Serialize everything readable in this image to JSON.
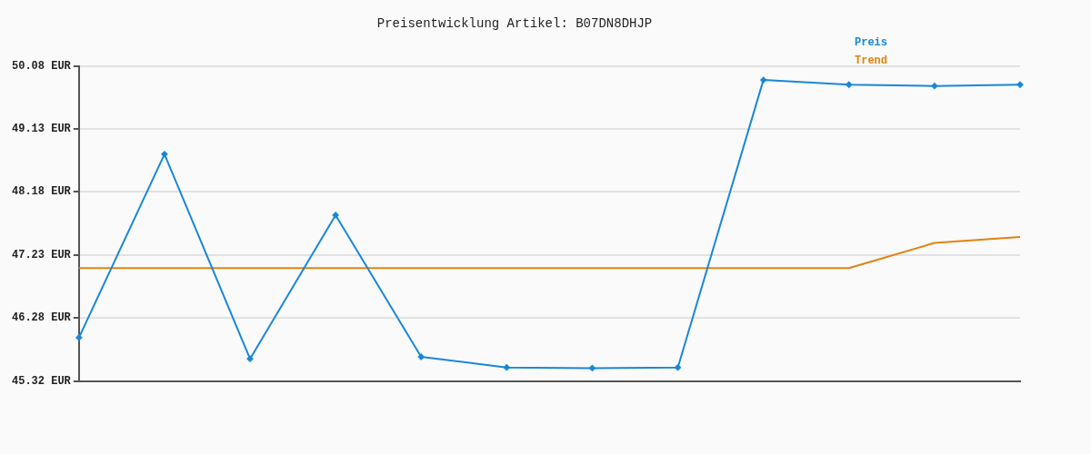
{
  "chart_data": {
    "type": "line",
    "title": "Preisentwicklung Artikel: B07DN8DHJP",
    "categories": [
      null,
      null,
      null,
      null,
      null,
      null,
      null,
      null,
      null,
      null,
      null,
      null
    ],
    "series": [
      {
        "name": "Preis",
        "color": "#1a87d6",
        "marker": "diamond",
        "values": [
          45.98,
          48.75,
          45.66,
          47.83,
          45.69,
          45.53,
          45.52,
          45.53,
          49.87,
          49.8,
          49.78,
          49.8
        ]
      },
      {
        "name": "Trend",
        "color": "#e3820f",
        "values": [
          47.03,
          47.03,
          47.03,
          47.03,
          47.03,
          47.03,
          47.03,
          47.03,
          47.03,
          47.03,
          47.41,
          47.5
        ]
      }
    ],
    "ylim": [
      45.32,
      50.08
    ],
    "yticks": [
      {
        "value": 45.32,
        "label": "45.32 EUR"
      },
      {
        "value": 46.28,
        "label": "46.28 EUR"
      },
      {
        "value": 47.23,
        "label": "47.23 EUR"
      },
      {
        "value": 48.18,
        "label": "48.18 EUR"
      },
      {
        "value": 49.13,
        "label": "49.13 EUR"
      },
      {
        "value": 50.08,
        "label": "50.08 EUR"
      }
    ],
    "grid": "y",
    "legend": "top right"
  }
}
